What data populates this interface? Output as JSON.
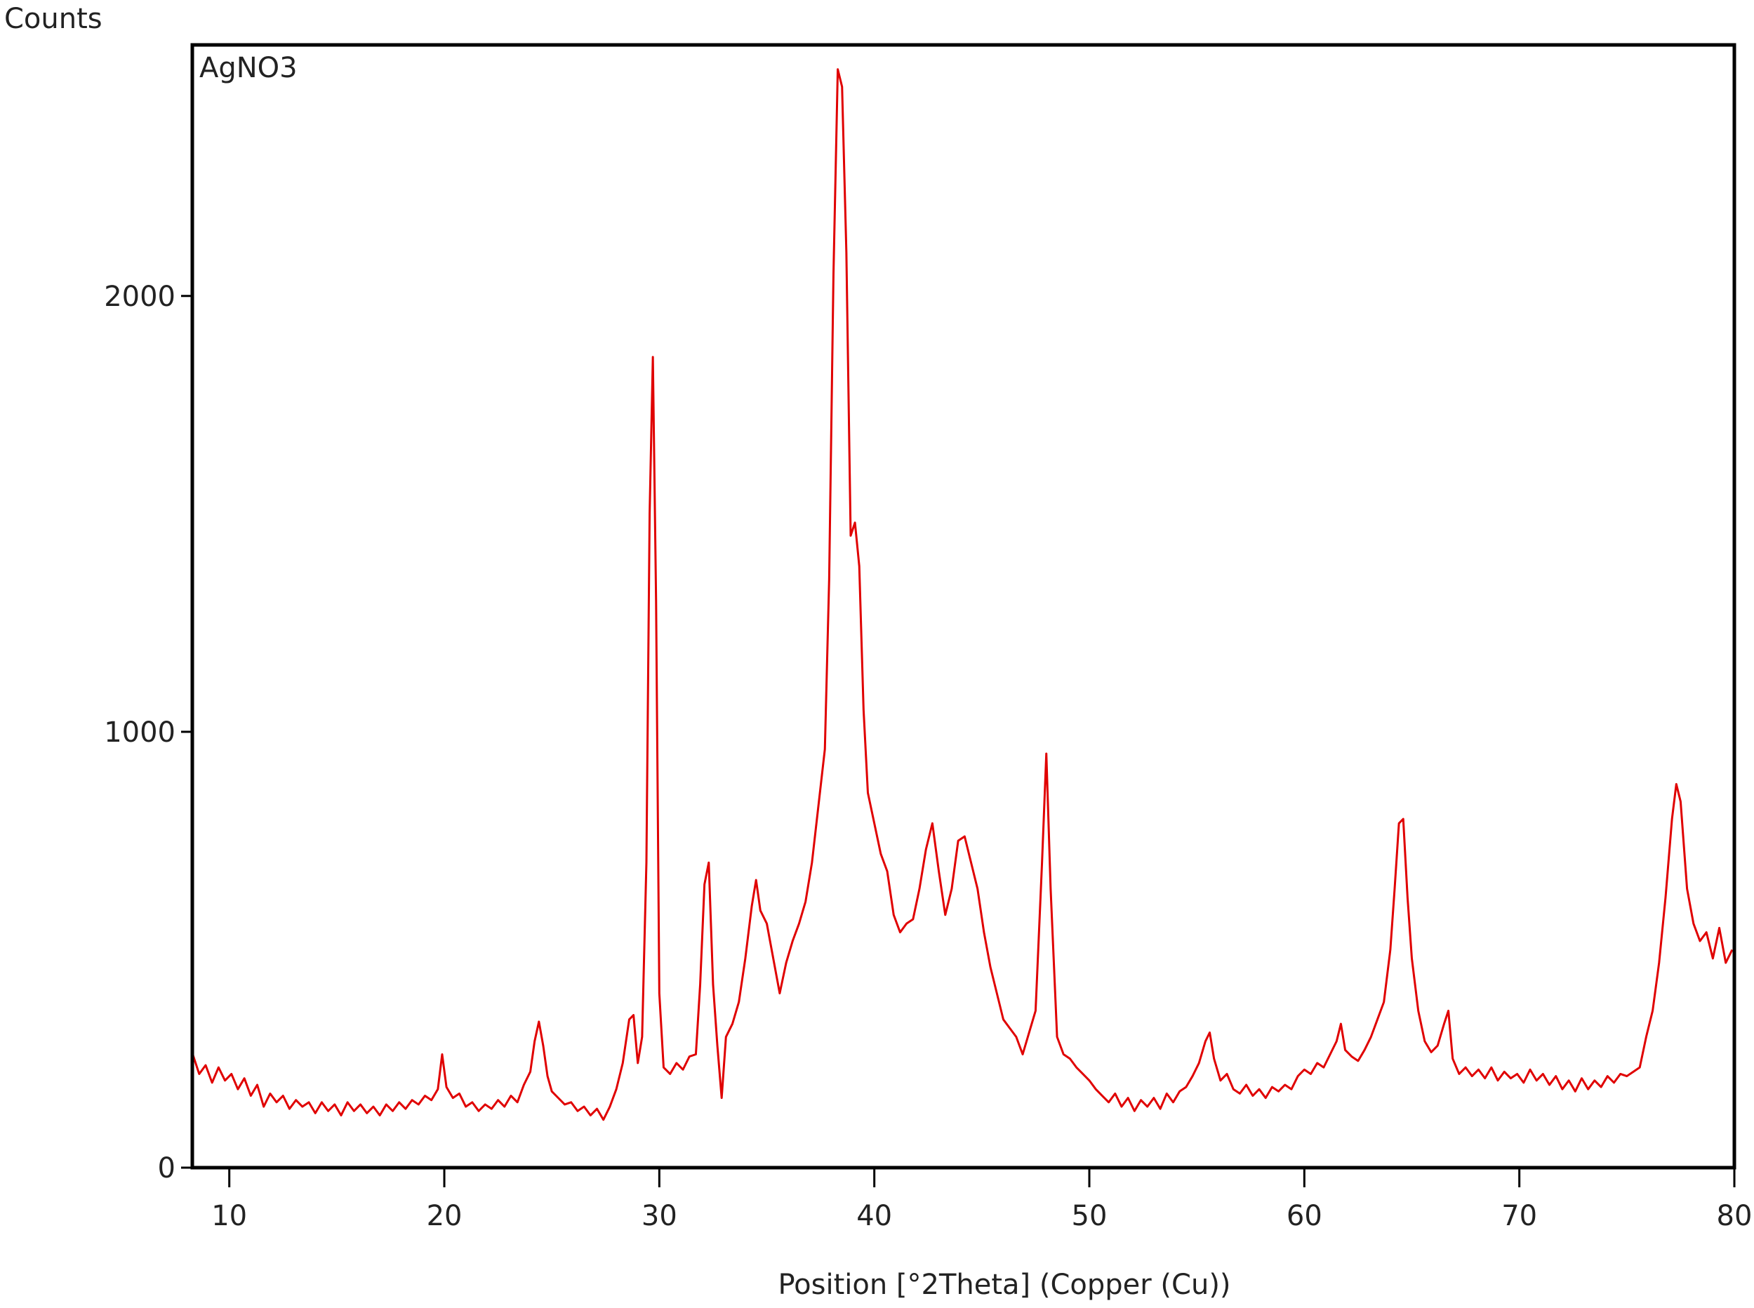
{
  "chart_data": {
    "type": "line",
    "y_label": "Counts",
    "x_label": "Position [°2Theta] (Copper (Cu))",
    "xlim": [
      8.28,
      80
    ],
    "ylim": [
      0,
      2576
    ],
    "xticks": [
      10,
      20,
      30,
      40,
      50,
      60,
      70,
      80
    ],
    "yticks": [
      0,
      1000,
      2000
    ],
    "grid": false,
    "x": [
      8.3,
      8.6,
      8.9,
      9.2,
      9.5,
      9.8,
      10.1,
      10.4,
      10.7,
      11,
      11.3,
      11.6,
      11.9,
      12.2,
      12.5,
      12.8,
      13.1,
      13.4,
      13.7,
      14,
      14.3,
      14.6,
      14.9,
      15.2,
      15.5,
      15.8,
      16.1,
      16.4,
      16.7,
      17,
      17.3,
      17.6,
      17.9,
      18.2,
      18.5,
      18.8,
      19.1,
      19.4,
      19.7,
      19.9,
      20.1,
      20.4,
      20.7,
      21,
      21.3,
      21.6,
      21.9,
      22.2,
      22.5,
      22.8,
      23.1,
      23.4,
      23.7,
      24,
      24.2,
      24.4,
      24.6,
      24.8,
      25,
      25.3,
      25.6,
      25.9,
      26.2,
      26.5,
      26.8,
      27.1,
      27.4,
      27.7,
      28,
      28.3,
      28.6,
      28.8,
      29,
      29.2,
      29.4,
      29.55,
      29.7,
      29.85,
      30,
      30.2,
      30.5,
      30.8,
      31.1,
      31.4,
      31.7,
      31.9,
      32.1,
      32.3,
      32.5,
      32.7,
      32.9,
      33.1,
      33.4,
      33.7,
      34,
      34.3,
      34.5,
      34.7,
      35,
      35.3,
      35.6,
      35.9,
      36.2,
      36.5,
      36.8,
      37.1,
      37.4,
      37.7,
      37.9,
      38.1,
      38.3,
      38.5,
      38.7,
      38.9,
      39.1,
      39.3,
      39.5,
      39.7,
      40,
      40.3,
      40.6,
      40.9,
      41.2,
      41.5,
      41.8,
      42.1,
      42.4,
      42.7,
      43,
      43.3,
      43.6,
      43.9,
      44.2,
      44.5,
      44.8,
      45.1,
      45.4,
      45.7,
      46,
      46.3,
      46.6,
      46.9,
      47.2,
      47.5,
      47.8,
      48,
      48.2,
      48.5,
      48.8,
      49.1,
      49.4,
      49.7,
      50,
      50.3,
      50.6,
      50.9,
      51.2,
      51.5,
      51.8,
      52.1,
      52.4,
      52.7,
      53,
      53.3,
      53.6,
      53.9,
      54.2,
      54.5,
      54.8,
      55.1,
      55.4,
      55.6,
      55.8,
      56.1,
      56.4,
      56.7,
      57,
      57.3,
      57.6,
      57.9,
      58.2,
      58.5,
      58.8,
      59.1,
      59.4,
      59.7,
      60,
      60.3,
      60.6,
      60.9,
      61.2,
      61.5,
      61.7,
      61.9,
      62.2,
      62.5,
      62.8,
      63.1,
      63.4,
      63.7,
      64,
      64.2,
      64.4,
      64.6,
      64.8,
      65,
      65.3,
      65.6,
      65.9,
      66.2,
      66.5,
      66.7,
      66.9,
      67.2,
      67.5,
      67.8,
      68.1,
      68.4,
      68.7,
      69,
      69.3,
      69.6,
      69.9,
      70.2,
      70.5,
      70.8,
      71.1,
      71.4,
      71.7,
      72,
      72.3,
      72.6,
      72.9,
      73.2,
      73.5,
      73.8,
      74.1,
      74.4,
      74.7,
      75,
      75.3,
      75.6,
      75.9,
      76.2,
      76.5,
      76.8,
      77.1,
      77.3,
      77.5,
      77.8,
      78.1,
      78.4,
      78.7,
      79,
      79.3,
      79.6,
      79.9
    ],
    "series": [
      {
        "name": "AgNO3",
        "color": "#e00000",
        "values": [
          260,
          215,
          235,
          195,
          230,
          200,
          215,
          180,
          205,
          165,
          190,
          140,
          170,
          150,
          165,
          135,
          155,
          140,
          150,
          125,
          150,
          130,
          145,
          120,
          150,
          130,
          145,
          125,
          140,
          120,
          145,
          130,
          150,
          135,
          155,
          145,
          165,
          155,
          180,
          260,
          185,
          160,
          170,
          140,
          150,
          130,
          145,
          135,
          155,
          140,
          165,
          150,
          190,
          220,
          290,
          335,
          280,
          210,
          175,
          160,
          145,
          150,
          130,
          140,
          120,
          135,
          110,
          140,
          180,
          240,
          340,
          350,
          240,
          300,
          700,
          1500,
          1860,
          1300,
          400,
          230,
          215,
          240,
          225,
          255,
          260,
          420,
          650,
          700,
          420,
          280,
          160,
          300,
          330,
          380,
          480,
          600,
          660,
          590,
          560,
          480,
          400,
          470,
          520,
          560,
          610,
          700,
          830,
          960,
          1350,
          2050,
          2520,
          2480,
          2100,
          1450,
          1480,
          1380,
          1050,
          860,
          790,
          720,
          680,
          580,
          540,
          560,
          570,
          640,
          730,
          790,
          680,
          580,
          640,
          750,
          760,
          700,
          640,
          540,
          460,
          400,
          340,
          320,
          300,
          260,
          310,
          360,
          700,
          950,
          640,
          300,
          260,
          250,
          230,
          215,
          200,
          180,
          165,
          150,
          170,
          140,
          160,
          130,
          155,
          140,
          160,
          135,
          170,
          150,
          175,
          185,
          210,
          240,
          290,
          310,
          250,
          200,
          215,
          180,
          170,
          190,
          165,
          180,
          160,
          185,
          175,
          190,
          180,
          210,
          225,
          215,
          240,
          230,
          260,
          290,
          330,
          270,
          255,
          245,
          270,
          300,
          340,
          380,
          500,
          640,
          790,
          800,
          620,
          480,
          360,
          290,
          265,
          280,
          330,
          360,
          250,
          215,
          230,
          210,
          225,
          205,
          230,
          200,
          220,
          205,
          215,
          195,
          225,
          200,
          215,
          190,
          210,
          180,
          200,
          175,
          205,
          180,
          200,
          185,
          210,
          195,
          215,
          210,
          220,
          230,
          300,
          360,
          470,
          620,
          800,
          880,
          840,
          640,
          560,
          520,
          540,
          480,
          550,
          470,
          500
        ]
      }
    ]
  }
}
